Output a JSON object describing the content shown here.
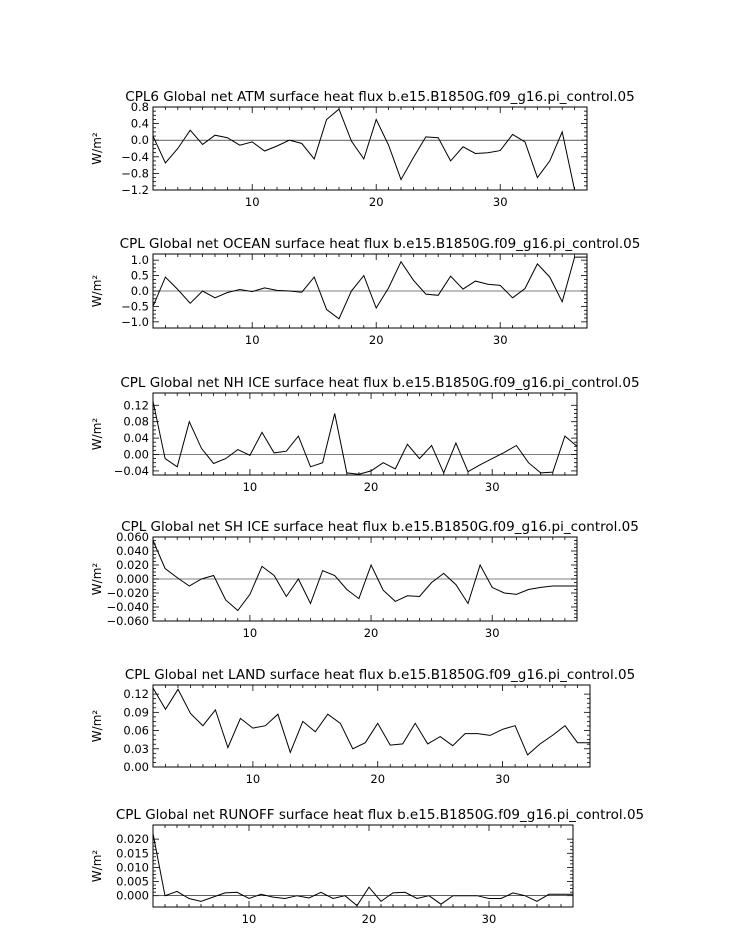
{
  "chart_data": [
    {
      "type": "line",
      "title": "CPL6 Global net ATM surface heat flux b.e15.B1850G.f09_g16.pi_control.05",
      "ylabel": "W/m²",
      "xlim": [
        2,
        37
      ],
      "ylim": [
        -1.2,
        0.8
      ],
      "xticks": [
        10,
        20,
        30
      ],
      "yticks": [
        -1.2,
        -0.8,
        -0.4,
        0.0,
        0.4,
        0.8
      ],
      "ytick_labels": [
        "−1.2",
        "−0.8",
        "−0.4",
        "0.0",
        "0.4",
        "0.8"
      ],
      "zero_line": true,
      "x": [
        2,
        3,
        4,
        5,
        6,
        7,
        8,
        9,
        10,
        11,
        12,
        13,
        14,
        15,
        16,
        17,
        18,
        19,
        20,
        21,
        22,
        23,
        24,
        25,
        26,
        27,
        28,
        29,
        30,
        31,
        32,
        33,
        34,
        35,
        36,
        37
      ],
      "values": [
        0.1,
        -0.55,
        -0.2,
        0.24,
        -0.1,
        0.12,
        0.06,
        -0.12,
        -0.04,
        -0.26,
        -0.14,
        0.0,
        -0.08,
        -0.45,
        0.5,
        0.75,
        -0.02,
        -0.45,
        0.5,
        -0.12,
        -0.95,
        -0.42,
        0.08,
        0.06,
        -0.5,
        -0.16,
        -0.32,
        -0.3,
        -0.25,
        0.14,
        -0.04,
        -0.9,
        -0.5,
        0.2,
        -1.2,
        -1.2
      ]
    },
    {
      "type": "line",
      "title": "CPL Global net OCEAN surface heat flux b.e15.B1850G.f09_g16.pi_control.05",
      "ylabel": "W/m²",
      "xlim": [
        2,
        37
      ],
      "ylim": [
        -1.2,
        1.2
      ],
      "xticks": [
        10,
        20,
        30
      ],
      "yticks": [
        -1.0,
        -0.5,
        0.0,
        0.5,
        1.0
      ],
      "ytick_labels": [
        "−1.0",
        "−0.5",
        "0.0",
        "0.5",
        "1.0"
      ],
      "zero_line": true,
      "x": [
        2,
        3,
        4,
        5,
        6,
        7,
        8,
        9,
        10,
        11,
        12,
        13,
        14,
        15,
        16,
        17,
        18,
        19,
        20,
        21,
        22,
        23,
        24,
        25,
        26,
        27,
        28,
        29,
        30,
        31,
        32,
        33,
        34,
        35,
        36,
        37
      ],
      "values": [
        -0.5,
        0.45,
        0.05,
        -0.4,
        0.0,
        -0.22,
        -0.05,
        0.05,
        -0.02,
        0.1,
        0.02,
        0.0,
        -0.04,
        0.45,
        -0.6,
        -0.9,
        0.0,
        0.5,
        -0.55,
        0.1,
        0.95,
        0.35,
        -0.1,
        -0.14,
        0.48,
        0.06,
        0.32,
        0.22,
        0.18,
        -0.22,
        0.08,
        0.88,
        0.45,
        -0.35,
        1.1,
        1.1
      ]
    },
    {
      "type": "line",
      "title": "CPL Global net NH ICE surface heat flux b.e15.B1850G.f09_g16.pi_control.05",
      "ylabel": "W/m²",
      "xlim": [
        2,
        37
      ],
      "ylim": [
        -0.05,
        0.15
      ],
      "xticks": [
        10,
        20,
        30
      ],
      "yticks": [
        -0.04,
        0.0,
        0.04,
        0.08,
        0.12
      ],
      "ytick_labels": [
        "−0.04",
        "0.00",
        "0.04",
        "0.08",
        "0.12"
      ],
      "zero_line": true,
      "x": [
        2,
        3,
        4,
        5,
        6,
        7,
        8,
        9,
        10,
        11,
        12,
        13,
        14,
        15,
        16,
        17,
        18,
        19,
        20,
        21,
        22,
        23,
        24,
        25,
        26,
        27,
        28,
        29,
        30,
        31,
        32,
        33,
        34,
        35,
        36,
        37
      ],
      "values": [
        0.13,
        -0.01,
        -0.03,
        0.08,
        0.015,
        -0.022,
        -0.01,
        0.012,
        -0.002,
        0.054,
        0.004,
        0.008,
        0.045,
        -0.03,
        -0.02,
        0.1,
        -0.045,
        -0.048,
        -0.04,
        -0.02,
        -0.035,
        0.025,
        -0.01,
        0.022,
        -0.045,
        0.028,
        -0.042,
        -0.025,
        -0.01,
        0.005,
        0.022,
        -0.02,
        -0.045,
        -0.043,
        0.045,
        0.02
      ]
    },
    {
      "type": "line",
      "title": "CPL Global net SH ICE surface heat flux b.e15.B1850G.f09_g16.pi_control.05",
      "ylabel": "W/m²",
      "xlim": [
        2,
        37
      ],
      "ylim": [
        -0.06,
        0.06
      ],
      "xticks": [
        10,
        20,
        30
      ],
      "yticks": [
        -0.06,
        -0.04,
        -0.02,
        0.0,
        0.02,
        0.04,
        0.06
      ],
      "ytick_labels": [
        "−0.060",
        "−0.040",
        "−0.020",
        "0.000",
        "0.020",
        "0.040",
        "0.060"
      ],
      "zero_line": true,
      "x": [
        2,
        3,
        4,
        5,
        6,
        7,
        8,
        9,
        10,
        11,
        12,
        13,
        14,
        15,
        16,
        17,
        18,
        19,
        20,
        21,
        22,
        23,
        24,
        25,
        26,
        27,
        28,
        29,
        30,
        31,
        32,
        33,
        34,
        35,
        36,
        37
      ],
      "values": [
        0.055,
        0.015,
        0.002,
        -0.01,
        0.0,
        0.005,
        -0.03,
        -0.045,
        -0.022,
        0.018,
        0.005,
        -0.025,
        0.0,
        -0.035,
        0.012,
        0.005,
        -0.015,
        -0.028,
        0.02,
        -0.016,
        -0.032,
        -0.024,
        -0.025,
        -0.005,
        0.008,
        -0.008,
        -0.035,
        0.02,
        -0.012,
        -0.02,
        -0.022,
        -0.015,
        -0.012,
        -0.01,
        -0.01,
        -0.01
      ]
    },
    {
      "type": "line",
      "title": "CPL Global net LAND surface heat flux b.e15.B1850G.f09_g16.pi_control.05",
      "ylabel": "W/m²",
      "xlim": [
        2,
        37
      ],
      "ylim": [
        0.0,
        0.135
      ],
      "xticks": [
        10,
        20,
        30
      ],
      "yticks": [
        0.0,
        0.03,
        0.06,
        0.09,
        0.12
      ],
      "ytick_labels": [
        "0.00",
        "0.03",
        "0.06",
        "0.09",
        "0.12"
      ],
      "zero_line": false,
      "x": [
        2,
        3,
        4,
        5,
        6,
        7,
        8,
        9,
        10,
        11,
        12,
        13,
        14,
        15,
        16,
        17,
        18,
        19,
        20,
        21,
        22,
        23,
        24,
        25,
        26,
        27,
        28,
        29,
        30,
        31,
        32,
        33,
        34,
        35,
        36,
        37
      ],
      "values": [
        0.13,
        0.095,
        0.128,
        0.088,
        0.068,
        0.094,
        0.032,
        0.08,
        0.064,
        0.068,
        0.087,
        0.024,
        0.075,
        0.058,
        0.087,
        0.072,
        0.03,
        0.04,
        0.072,
        0.036,
        0.038,
        0.072,
        0.038,
        0.05,
        0.035,
        0.055,
        0.055,
        0.052,
        0.062,
        0.068,
        0.02,
        0.038,
        0.052,
        0.068,
        0.04,
        0.04
      ]
    },
    {
      "type": "line",
      "title": "CPL Global net RUNOFF surface heat flux b.e15.B1850G.f09_g16.pi_control.05",
      "ylabel": "W/m²",
      "xlim": [
        2,
        37
      ],
      "ylim": [
        -0.004,
        0.025
      ],
      "xticks": [
        10,
        20,
        30
      ],
      "yticks": [
        0.0,
        0.005,
        0.01,
        0.015,
        0.02
      ],
      "ytick_labels": [
        "0.000",
        "0.005",
        "0.010",
        "0.015",
        "0.020"
      ],
      "zero_line": true,
      "x": [
        2,
        3,
        4,
        5,
        6,
        7,
        8,
        9,
        10,
        11,
        12,
        13,
        14,
        15,
        16,
        17,
        18,
        19,
        20,
        21,
        22,
        23,
        24,
        25,
        26,
        27,
        28,
        29,
        30,
        31,
        32,
        33,
        34,
        35,
        36,
        37
      ],
      "values": [
        0.022,
        0.0,
        0.0015,
        -0.001,
        -0.002,
        -0.0005,
        0.001,
        0.0012,
        -0.001,
        0.0005,
        -0.0005,
        -0.001,
        0.0,
        -0.0008,
        0.0012,
        -0.001,
        0.0,
        -0.0035,
        0.003,
        -0.002,
        0.001,
        0.0012,
        -0.001,
        0.0,
        -0.003,
        0.0,
        0.0,
        0.0,
        -0.001,
        -0.001,
        0.001,
        0.0,
        -0.002,
        0.0005,
        0.0005,
        0.0005
      ]
    }
  ]
}
